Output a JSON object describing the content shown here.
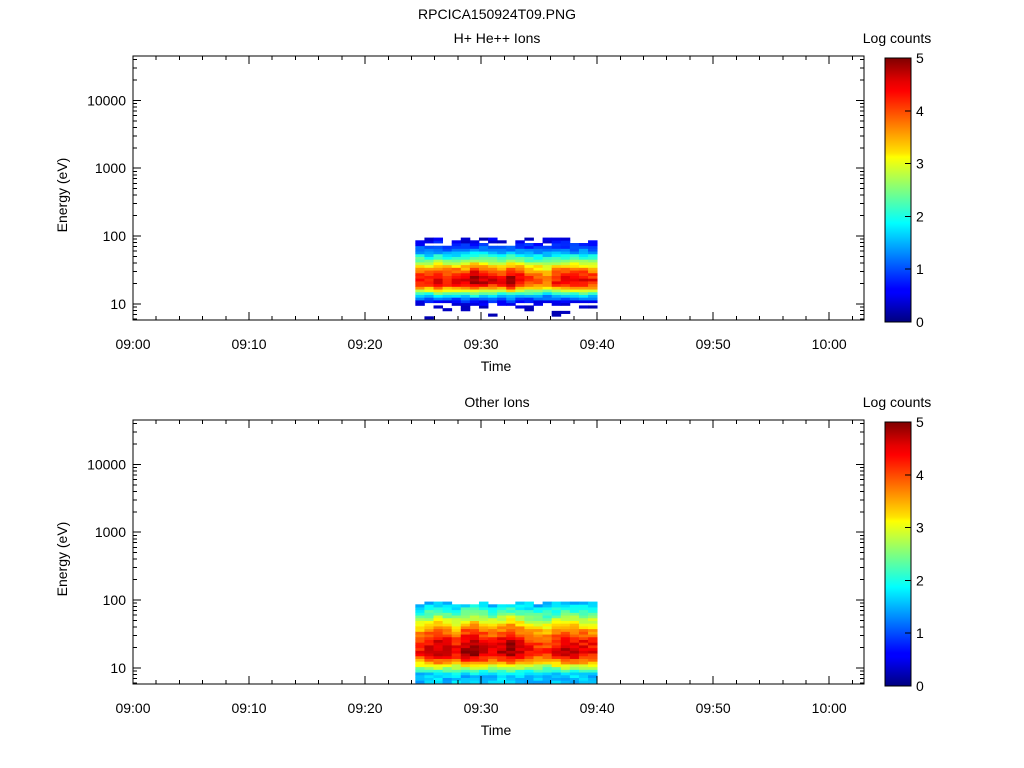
{
  "figure_title": "RPCICA150924T09.PNG",
  "chart_data": [
    {
      "type": "heatmap",
      "title": "H+ He++ Ions",
      "xlabel": "Time",
      "ylabel": "Energy (eV)",
      "colorbar_label": "Log counts",
      "x_ticks": [
        "09:00",
        "09:10",
        "09:20",
        "09:30",
        "09:40",
        "09:50",
        "10:00"
      ],
      "xlim": [
        "09:00",
        "10:03"
      ],
      "y_scale": "log",
      "y_ticks": [
        10,
        100,
        1000,
        10000
      ],
      "ylim": [
        5.8,
        45000
      ],
      "colorbar_range": [
        0,
        5
      ],
      "colorbar_ticks": [
        0,
        1,
        2,
        3,
        4,
        5
      ],
      "data_time_range": [
        "09:24:20",
        "09:40:00"
      ],
      "data_energy_range_eV": [
        6,
        95
      ],
      "colormap": "jet",
      "data_description": "Peak log counts ~4.5-5 around 15-40 eV; counts fall to ~0.5-1 near 100 eV and ~1-1.5 near 10 eV; sparse near the top and bottom edges.",
      "peak_energy_eV": 22,
      "peak_log_counts_by_column": [
        4.4,
        4.3,
        4.6,
        4.4,
        4.5,
        4.4,
        4.9,
        4.7,
        4.5,
        4.4,
        4.8,
        4.5,
        4.2,
        4.1,
        3.9,
        4.3,
        4.6,
        4.4,
        4.5,
        4.3
      ]
    },
    {
      "type": "heatmap",
      "title": "Other Ions",
      "xlabel": "Time",
      "ylabel": "Energy (eV)",
      "colorbar_label": "Log counts",
      "x_ticks": [
        "09:00",
        "09:10",
        "09:20",
        "09:30",
        "09:40",
        "09:50",
        "10:00"
      ],
      "xlim": [
        "09:00",
        "10:03"
      ],
      "y_scale": "log",
      "y_ticks": [
        10,
        100,
        1000,
        10000
      ],
      "ylim": [
        5.8,
        45000
      ],
      "colorbar_range": [
        0,
        5
      ],
      "colorbar_ticks": [
        0,
        1,
        2,
        3,
        4,
        5
      ],
      "data_time_range": [
        "09:24:20",
        "09:40:00"
      ],
      "data_energy_range_eV": [
        6,
        95
      ],
      "colormap": "jet",
      "data_description": "Peak log counts ~4.5-5 around 12-30 eV; counts ~2-3 near 100 eV; ~2.5 at lowest energies.",
      "peak_energy_eV": 18,
      "peak_log_counts_by_column": [
        4.3,
        4.5,
        4.7,
        4.6,
        4.4,
        4.8,
        4.9,
        4.6,
        4.4,
        4.7,
        4.9,
        4.6,
        4.3,
        4.2,
        4.1,
        4.4,
        4.7,
        4.6,
        4.5,
        4.4
      ]
    }
  ]
}
